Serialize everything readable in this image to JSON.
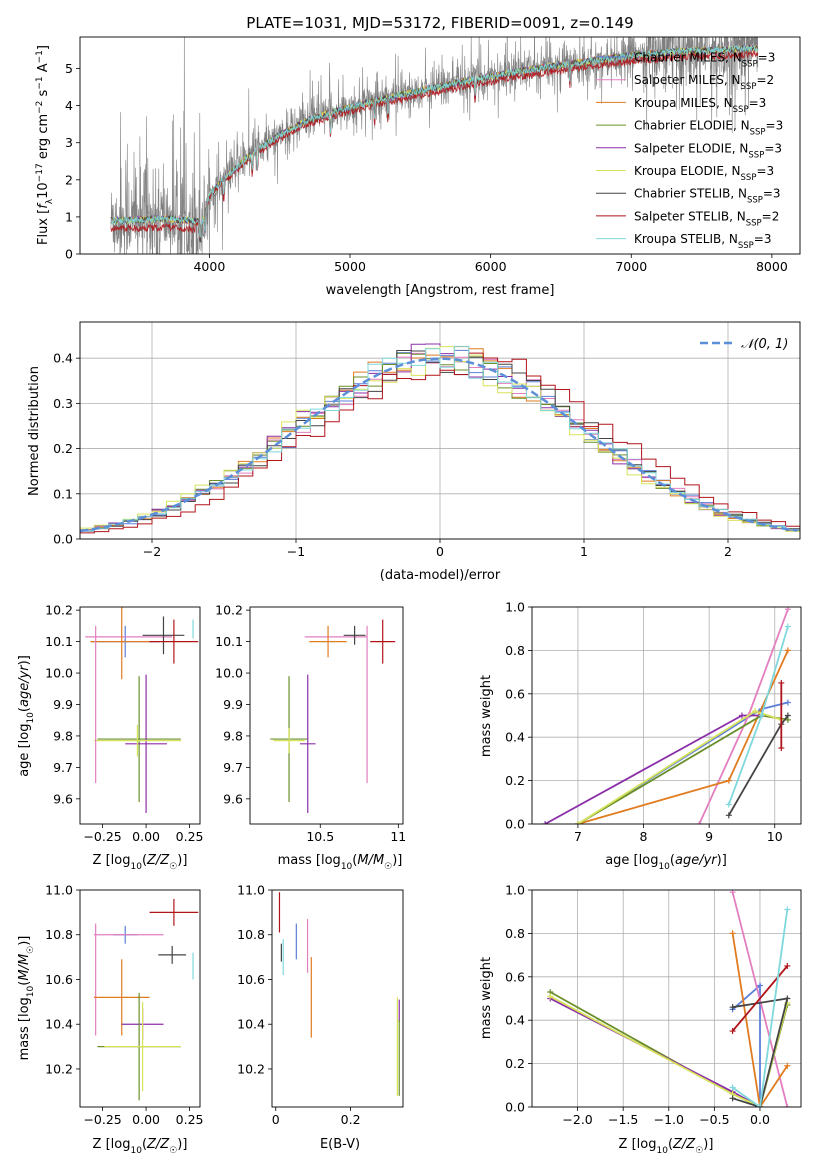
{
  "title": "PLATE=1031, MJD=53172, FIBERID=0091, z=0.149",
  "colors": {
    "Chabrier MILES": "#5b7fd8",
    "Salpeter MILES": "#e37fc0",
    "Kroupa MILES": "#e07b20",
    "Chabrier ELODIE": "#6a8f2a",
    "Salpeter ELODIE": "#8b2fa8",
    "Kroupa ELODIE": "#d7e35a",
    "Chabrier STELIB": "#444444",
    "Salpeter STELIB": "#b0141a",
    "Kroupa STELIB": "#7fd8dc",
    "data": "#808080",
    "gaussian": "#5b8fd8",
    "grid": "#b0b0b0"
  },
  "chart_data": [
    {
      "id": "spectrum",
      "type": "line",
      "title": "PLATE=1031, MJD=53172, FIBERID=0091, z=0.149",
      "xlabel": "wavelength [Angstrom, rest frame]",
      "ylabel": "Flux [fλ10⁻¹⁷ erg cm⁻² s⁻¹ A⁻¹]",
      "xlim": [
        3080,
        8200
      ],
      "ylim": [
        0,
        5.85
      ],
      "xticks": [
        4000,
        5000,
        6000,
        7000,
        8000
      ],
      "yticks": [
        0,
        1,
        2,
        3,
        4,
        5
      ],
      "grid": false,
      "legend_position": "top-right",
      "legend": [
        "Chabrier MILES, N_SSP=3",
        "Salpeter MILES, N_SSP=2",
        "Kroupa MILES, N_SSP=3",
        "Chabrier ELODIE, N_SSP=3",
        "Salpeter ELODIE, N_SSP=3",
        "Kroupa ELODIE, N_SSP=3",
        "Chabrier STELIB, N_SSP=3",
        "Salpeter STELIB, N_SSP=2",
        "Kroupa STELIB, N_SSP=3"
      ],
      "legend_display": [
        {
          "pre": "Chabrier MILES, N",
          "sub": "SSP",
          "post": "=3"
        },
        {
          "pre": "Salpeter MILES, N",
          "sub": "SSP",
          "post": "=2"
        },
        {
          "pre": "Kroupa MILES, N",
          "sub": "SSP",
          "post": "=3"
        },
        {
          "pre": "Chabrier ELODIE, N",
          "sub": "SSP",
          "post": "=3"
        },
        {
          "pre": "Salpeter ELODIE, N",
          "sub": "SSP",
          "post": "=3"
        },
        {
          "pre": "Kroupa ELODIE, N",
          "sub": "SSP",
          "post": "=3"
        },
        {
          "pre": "Chabrier STELIB, N",
          "sub": "SSP",
          "post": "=3"
        },
        {
          "pre": "Salpeter STELIB, N",
          "sub": "SSP",
          "post": "=2"
        },
        {
          "pre": "Kroupa STELIB, N",
          "sub": "SSP",
          "post": "=3"
        }
      ],
      "continuum_wavelength": [
        3300,
        3500,
        3700,
        3850,
        3950,
        4000,
        4100,
        4300,
        4500,
        4700,
        4900,
        5200,
        5500,
        5800,
        6100,
        6400,
        6700,
        7000,
        7300,
        7600,
        7900
      ],
      "continuum_flux": [
        0.9,
        0.92,
        0.95,
        0.9,
        0.85,
        1.6,
        2.0,
        2.7,
        3.2,
        3.6,
        3.85,
        4.15,
        4.4,
        4.65,
        4.85,
        5.05,
        5.2,
        5.35,
        5.45,
        5.5,
        5.55
      ]
    },
    {
      "id": "residuals",
      "type": "histogram",
      "xlabel": "(data-model)/error",
      "ylabel": "Normed distribution",
      "xlim": [
        -2.5,
        2.5
      ],
      "ylim": [
        0,
        0.48
      ],
      "xticks": [
        -2,
        -1,
        0,
        1,
        2
      ],
      "yticks": [
        0.0,
        0.1,
        0.2,
        0.3,
        0.4
      ],
      "grid": true,
      "legend": [
        "𝒩(0, 1)"
      ],
      "legend_position": "top-right",
      "gaussian": {
        "mean": 0,
        "sigma": 1
      },
      "bin_width": 0.1
    },
    {
      "id": "age-vs-Z",
      "type": "errorbar",
      "xlabel": "Z [log10(Z/Z☉)]",
      "ylabel": "age [log10(age/yr)]",
      "xlim": [
        -0.38,
        0.31
      ],
      "ylim": [
        9.52,
        10.21
      ],
      "xticks": [
        -0.25,
        0.0,
        0.25
      ],
      "xtick_labels": [
        "−0.25",
        "0.00",
        "0.25"
      ],
      "yticks": [
        9.6,
        9.7,
        9.8,
        9.9,
        10.0,
        10.1,
        10.2
      ],
      "grid": false,
      "points": [
        {
          "model": "Chabrier MILES",
          "x": -0.12,
          "xerr": 0.2,
          "y": 10.1,
          "yerr": 0.05
        },
        {
          "model": "Salpeter MILES",
          "x": -0.1,
          "xerr": 0.25,
          "y": 10.115,
          "yerr": 0.0
        },
        {
          "model": "Kroupa MILES",
          "x": -0.14,
          "xerr": 0.18,
          "y": 10.1,
          "yerr": 0.12
        },
        {
          "model": "Chabrier ELODIE",
          "x": -0.04,
          "xerr": 0.24,
          "y": 9.79,
          "yerr": 0.2
        },
        {
          "model": "Salpeter ELODIE",
          "x": 0.0,
          "xerr": 0.12,
          "y": 9.775,
          "yerr": 0.22
        },
        {
          "model": "Kroupa ELODIE",
          "x": -0.05,
          "xerr": 0.25,
          "y": 9.785,
          "yerr": 0.05
        },
        {
          "model": "Chabrier STELIB",
          "x": 0.1,
          "xerr": 0.12,
          "y": 10.12,
          "yerr": 0.06
        },
        {
          "model": "Salpeter STELIB",
          "x": 0.16,
          "xerr": 0.14,
          "y": 10.1,
          "yerr": 0.07
        },
        {
          "model": "Kroupa STELIB",
          "x": 0.27,
          "xerr": 0.0,
          "y": 10.14,
          "yerr": 0.03
        },
        {
          "model": "Salpeter MILES",
          "x": -0.29,
          "xerr": 0.0,
          "y": 9.9,
          "yerr": 0.25
        }
      ]
    },
    {
      "id": "age-vs-mass",
      "type": "errorbar",
      "xlabel": "mass [log10(M/M☉)]",
      "ylabel": "",
      "xlim": [
        10.05,
        11.03
      ],
      "ylim": [
        9.52,
        10.21
      ],
      "xticks": [
        10.5,
        11.0
      ],
      "yticks": [
        9.6,
        9.7,
        9.8,
        9.9,
        10.0,
        10.1,
        10.2
      ],
      "grid": false,
      "points": [
        {
          "model": "Salpeter MILES",
          "x": 10.6,
          "xerr": 0.2,
          "y": 10.115,
          "yerr": 0.0
        },
        {
          "model": "Kroupa MILES",
          "x": 10.55,
          "xerr": 0.12,
          "y": 10.1,
          "yerr": 0.05
        },
        {
          "model": "Chabrier STELIB",
          "x": 10.72,
          "xerr": 0.07,
          "y": 10.12,
          "yerr": 0.03
        },
        {
          "model": "Salpeter STELIB",
          "x": 10.9,
          "xerr": 0.08,
          "y": 10.1,
          "yerr": 0.07
        },
        {
          "model": "Salpeter MILES",
          "x": 10.8,
          "xerr": 0.0,
          "y": 9.9,
          "yerr": 0.25
        },
        {
          "model": "Chabrier ELODIE",
          "x": 10.3,
          "xerr": 0.12,
          "y": 9.79,
          "yerr": 0.2
        },
        {
          "model": "Salpeter ELODIE",
          "x": 10.42,
          "xerr": 0.05,
          "y": 9.775,
          "yerr": 0.22
        },
        {
          "model": "Kroupa ELODIE",
          "x": 10.3,
          "xerr": 0.1,
          "y": 9.785,
          "yerr": 0.04
        }
      ]
    },
    {
      "id": "weight-vs-age",
      "type": "line",
      "xlabel": "age [log10(age/yr)]",
      "ylabel": "mass weight",
      "xlim": [
        6.3,
        10.4
      ],
      "ylim": [
        0,
        1.0
      ],
      "xticks": [
        7,
        8,
        9,
        10
      ],
      "yticks": [
        0.0,
        0.2,
        0.4,
        0.6,
        0.8,
        1.0
      ],
      "grid": true,
      "series": [
        {
          "model": "Chabrier MILES",
          "x": [
            7.0,
            9.8,
            10.2
          ],
          "y": [
            0.0,
            0.53,
            0.56
          ]
        },
        {
          "model": "Salpeter MILES",
          "x": [
            8.85,
            9.6,
            10.2
          ],
          "y": [
            0.0,
            0.5,
            0.99
          ]
        },
        {
          "model": "Kroupa MILES",
          "x": [
            7.0,
            9.3,
            10.2
          ],
          "y": [
            0.0,
            0.2,
            0.8
          ]
        },
        {
          "model": "Chabrier ELODIE",
          "x": [
            7.0,
            9.8,
            10.2
          ],
          "y": [
            0.0,
            0.5,
            0.48
          ]
        },
        {
          "model": "Salpeter ELODIE",
          "x": [
            6.5,
            9.5,
            9.8
          ],
          "y": [
            0.0,
            0.5,
            0.5
          ]
        },
        {
          "model": "Kroupa ELODIE",
          "x": [
            7.0,
            9.7,
            10.1
          ],
          "y": [
            0.0,
            0.52,
            0.48
          ]
        },
        {
          "model": "Chabrier STELIB",
          "x": [
            9.3,
            10.1,
            10.2
          ],
          "y": [
            0.04,
            0.46,
            0.5
          ]
        },
        {
          "model": "Salpeter STELIB",
          "x": [
            10.1,
            10.1
          ],
          "y": [
            0.35,
            0.65
          ]
        },
        {
          "model": "Kroupa STELIB",
          "x": [
            9.3,
            9.8,
            10.2
          ],
          "y": [
            0.09,
            0.5,
            0.91
          ]
        }
      ]
    },
    {
      "id": "mass-vs-Z",
      "type": "errorbar",
      "xlabel": "Z [log10(Z/Z☉)]",
      "ylabel": "mass [log10(M/M☉)]",
      "xlim": [
        -0.38,
        0.31
      ],
      "ylim": [
        10.03,
        11.0
      ],
      "xticks": [
        -0.25,
        0.0,
        0.25
      ],
      "xtick_labels": [
        "−0.25",
        "0.00",
        "0.25"
      ],
      "yticks": [
        10.2,
        10.4,
        10.6,
        10.8,
        11.0
      ],
      "grid": false,
      "points": [
        {
          "model": "Salpeter STELIB",
          "x": 0.16,
          "xerr": 0.14,
          "y": 10.9,
          "yerr": 0.06
        },
        {
          "model": "Chabrier MILES",
          "x": -0.12,
          "xerr": 0.07,
          "y": 10.8,
          "yerr": 0.04
        },
        {
          "model": "Salpeter MILES",
          "x": -0.1,
          "xerr": 0.2,
          "y": 10.8,
          "yerr": 0.0
        },
        {
          "model": "Salpeter MILES",
          "x": -0.29,
          "xerr": 0.0,
          "y": 10.6,
          "yerr": 0.25
        },
        {
          "model": "Chabrier STELIB",
          "x": 0.15,
          "xerr": 0.08,
          "y": 10.71,
          "yerr": 0.04
        },
        {
          "model": "Kroupa STELIB",
          "x": 0.27,
          "xerr": 0.0,
          "y": 10.66,
          "yerr": 0.06
        },
        {
          "model": "Kroupa MILES",
          "x": -0.14,
          "xerr": 0.16,
          "y": 10.52,
          "yerr": 0.17
        },
        {
          "model": "Salpeter ELODIE",
          "x": -0.02,
          "xerr": 0.12,
          "y": 10.4,
          "yerr": 0.07
        },
        {
          "model": "Chabrier ELODIE",
          "x": -0.04,
          "xerr": 0.24,
          "y": 10.3,
          "yerr": 0.24
        },
        {
          "model": "Kroupa ELODIE",
          "x": -0.02,
          "xerr": 0.22,
          "y": 10.3,
          "yerr": 0.2
        }
      ]
    },
    {
      "id": "mass-vs-ebv",
      "type": "errorbar",
      "xlabel": "E(B-V)",
      "ylabel": "",
      "xlim": [
        -0.01,
        0.34
      ],
      "ylim": [
        10.03,
        11.0
      ],
      "xticks": [
        0.0,
        0.2
      ],
      "yticks": [
        10.2,
        10.4,
        10.6,
        10.8,
        11.0
      ],
      "grid": false,
      "points": [
        {
          "model": "Salpeter STELIB",
          "x": 0.01,
          "xerr": 0.0,
          "y": 10.9,
          "yerr": 0.09
        },
        {
          "model": "Chabrier MILES",
          "x": 0.055,
          "xerr": 0.0,
          "y": 10.77,
          "yerr": 0.08
        },
        {
          "model": "Kroupa STELIB",
          "x": 0.02,
          "xerr": 0.0,
          "y": 10.7,
          "yerr": 0.08
        },
        {
          "model": "Chabrier STELIB",
          "x": 0.015,
          "xerr": 0.0,
          "y": 10.72,
          "yerr": 0.04
        },
        {
          "model": "Salpeter MILES",
          "x": 0.085,
          "xerr": 0.0,
          "y": 10.75,
          "yerr": 0.12
        },
        {
          "model": "Kroupa MILES",
          "x": 0.095,
          "xerr": 0.0,
          "y": 10.52,
          "yerr": 0.18
        },
        {
          "model": "Salpeter ELODIE",
          "x": 0.33,
          "xerr": 0.0,
          "y": 10.46,
          "yerr": 0.05
        },
        {
          "model": "Kroupa ELODIE",
          "x": 0.325,
          "xerr": 0.0,
          "y": 10.3,
          "yerr": 0.22
        },
        {
          "model": "Chabrier ELODIE",
          "x": 0.33,
          "xerr": 0.0,
          "y": 10.25,
          "yerr": 0.17
        }
      ]
    },
    {
      "id": "weight-vs-Z",
      "type": "line",
      "xlabel": "Z [log10(Z/Z☉)]",
      "ylabel": "mass weight",
      "xlim": [
        -2.5,
        0.45
      ],
      "ylim": [
        0,
        1.0
      ],
      "xticks": [
        -2.0,
        -1.5,
        -1.0,
        -0.5,
        0.0
      ],
      "xtick_labels": [
        "−2.0",
        "−1.5",
        "−1.0",
        "−0.5",
        "0.0"
      ],
      "yticks": [
        0.0,
        0.2,
        0.4,
        0.6,
        0.8,
        1.0
      ],
      "grid": true,
      "series": [
        {
          "model": "Chabrier MILES",
          "x": [
            -0.3,
            0.0,
            0.0
          ],
          "y": [
            0.45,
            0.56,
            0.0
          ]
        },
        {
          "model": "Salpeter MILES",
          "x": [
            -0.3,
            0.3
          ],
          "y": [
            0.99,
            0.0
          ]
        },
        {
          "model": "Kroupa MILES",
          "x": [
            -0.3,
            0.0,
            0.3
          ],
          "y": [
            0.8,
            0.0,
            0.19
          ]
        },
        {
          "model": "Chabrier ELODIE",
          "x": [
            -2.3,
            -0.3,
            0.0,
            0.3
          ],
          "y": [
            0.53,
            0.06,
            0.0,
            0.47
          ]
        },
        {
          "model": "Salpeter ELODIE",
          "x": [
            -2.3,
            -0.3,
            0.0
          ],
          "y": [
            0.5,
            0.07,
            0.0
          ]
        },
        {
          "model": "Kroupa ELODIE",
          "x": [
            -2.3,
            -0.3,
            0.0,
            0.3
          ],
          "y": [
            0.51,
            0.06,
            0.0,
            0.48
          ]
        },
        {
          "model": "Chabrier STELIB",
          "x": [
            -0.3,
            0.0,
            0.3,
            -0.3
          ],
          "y": [
            0.04,
            0.0,
            0.5,
            0.46
          ]
        },
        {
          "model": "Salpeter STELIB",
          "x": [
            -0.3,
            0.3
          ],
          "y": [
            0.35,
            0.65
          ]
        },
        {
          "model": "Kroupa STELIB",
          "x": [
            -0.3,
            0.0,
            0.3
          ],
          "y": [
            0.09,
            0.0,
            0.91
          ]
        }
      ]
    }
  ]
}
